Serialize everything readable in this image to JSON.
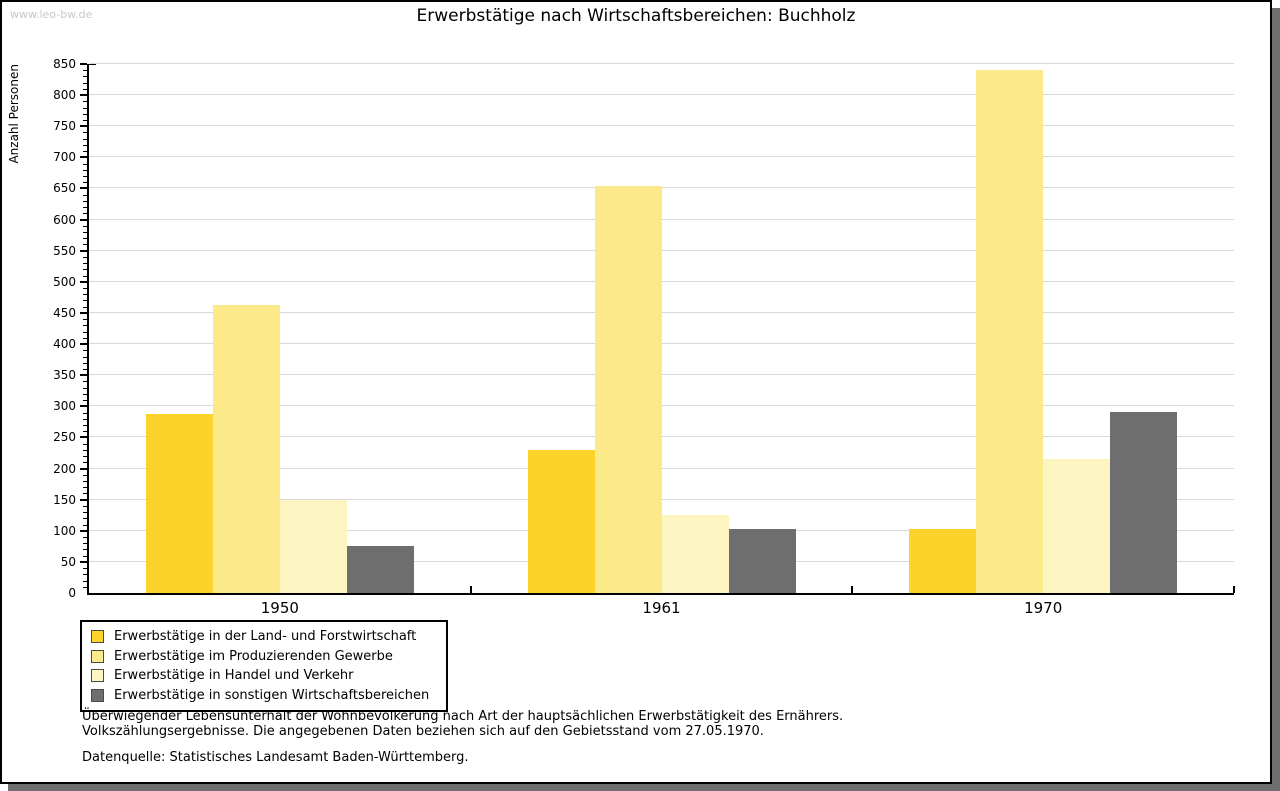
{
  "page": {
    "watermark": "www.leo-bw.de",
    "title": "Erwerbstätige nach Wirtschaftsbereichen: Buchholz"
  },
  "chart_data": {
    "type": "bar",
    "title": "Erwerbstätige nach Wirtschaftsbereichen: Buchholz",
    "xlabel": "",
    "ylabel": "Anzahl Personen",
    "categories": [
      "1950",
      "1961",
      "1970"
    ],
    "series": [
      {
        "name": "Erwerbstätige in der Land- und Forstwirtschaft",
        "color": "#fcd32b",
        "values": [
          287,
          230,
          103
        ]
      },
      {
        "name": "Erwerbstätige im Produzierenden Gewerbe",
        "color": "#fbe98a",
        "values": [
          463,
          654,
          840
        ]
      },
      {
        "name": "Erwerbstätige in Handel und Verkehr",
        "color": "#fcf5c1",
        "values": [
          150,
          125,
          216
        ]
      },
      {
        "name": "Erwerbstätige in sonstigen Wirtschaftsbereichen",
        "color": "#6e6e6e",
        "values": [
          75,
          103,
          291
        ]
      }
    ],
    "ylim": [
      0,
      850
    ],
    "y_tick_step": 50,
    "y_minor_tick_step": 10,
    "grid": "horizontal",
    "grid_color": "#d9d9d9",
    "axis_color": "#000000",
    "legend_position": "bottom-left"
  },
  "footnotes": {
    "line1": "Überwiegender Lebensunterhalt der Wohnbevölkerung nach Art der hauptsächlichen Erwerbstätigkeit des Ernährers.",
    "line2": "Volkszählungsergebnisse. Die angegebenen Daten beziehen sich auf den Gebietsstand vom 27.05.1970.",
    "source": "Datenquelle: Statistisches Landesamt Baden-Württemberg."
  }
}
